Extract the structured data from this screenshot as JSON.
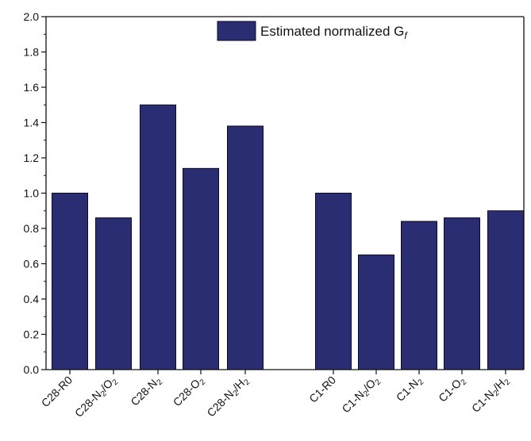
{
  "chart_data": {
    "type": "bar",
    "categories": [
      [
        {
          "t": "C28-R0"
        }
      ],
      [
        {
          "t": "C28-N"
        },
        {
          "t": "2",
          "s": "sub"
        },
        {
          "t": "/O"
        },
        {
          "t": "2",
          "s": "sub"
        }
      ],
      [
        {
          "t": "C28-N"
        },
        {
          "t": "2",
          "s": "sub"
        }
      ],
      [
        {
          "t": "C28-O"
        },
        {
          "t": "2",
          "s": "sub"
        }
      ],
      [
        {
          "t": "C28-N"
        },
        {
          "t": "2",
          "s": "sub"
        },
        {
          "t": "/H"
        },
        {
          "t": "2",
          "s": "sub"
        }
      ],
      [
        {
          "t": "C1-R0"
        }
      ],
      [
        {
          "t": "C1-N"
        },
        {
          "t": "2",
          "s": "sub"
        },
        {
          "t": "/O"
        },
        {
          "t": "2",
          "s": "sub"
        }
      ],
      [
        {
          "t": "C1-N"
        },
        {
          "t": "2",
          "s": "sub"
        }
      ],
      [
        {
          "t": "C1-O"
        },
        {
          "t": "2",
          "s": "sub"
        }
      ],
      [
        {
          "t": "C1-N"
        },
        {
          "t": "2",
          "s": "sub"
        },
        {
          "t": "/H"
        },
        {
          "t": "2",
          "s": "sub"
        }
      ]
    ],
    "values": [
      1.0,
      0.86,
      1.5,
      1.14,
      1.38,
      1.0,
      0.65,
      0.84,
      0.86,
      0.9
    ],
    "series": [
      {
        "name": [
          {
            "t": "Estimated normalized G"
          },
          {
            "t": "f",
            "s": "sub-italic"
          }
        ],
        "color": "#2b2d72"
      }
    ],
    "ylim": [
      0,
      2.0
    ],
    "yticks": [
      "0.0",
      "0.2",
      "0.4",
      "0.6",
      "0.8",
      "1.0",
      "1.2",
      "1.4",
      "1.6",
      "1.8",
      "2.0"
    ],
    "grid": false,
    "legend_position": "top-right",
    "colors": {
      "bar": "#2b2d72",
      "axis": "#111111"
    }
  }
}
